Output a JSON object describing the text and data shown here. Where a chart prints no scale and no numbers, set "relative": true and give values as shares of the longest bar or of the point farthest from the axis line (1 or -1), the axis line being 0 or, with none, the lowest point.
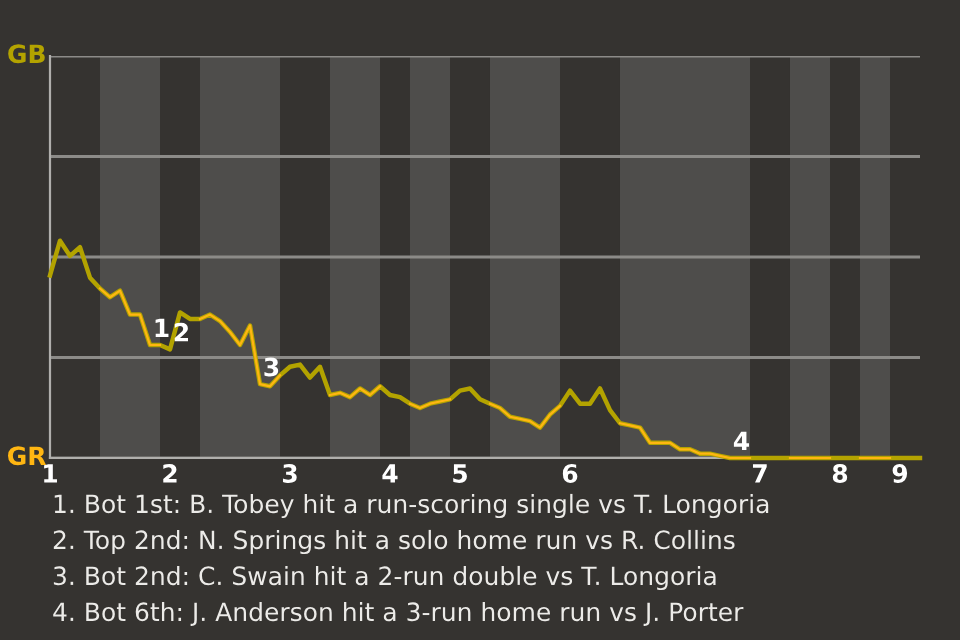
{
  "chart_data": {
    "type": "line",
    "relative": true,
    "ylim": [
      0,
      1.85
    ],
    "categories": [
      "1",
      null,
      null,
      null,
      null,
      null,
      null,
      null,
      null,
      null,
      null,
      null,
      "2",
      null,
      null,
      null,
      null,
      null,
      null,
      null,
      null,
      null,
      null,
      null,
      "3",
      null,
      null,
      null,
      null,
      null,
      null,
      null,
      null,
      null,
      "4",
      null,
      null,
      null,
      null,
      null,
      null,
      "5",
      null,
      null,
      null,
      null,
      null,
      null,
      null,
      null,
      null,
      null,
      "6",
      null,
      null,
      null,
      null,
      null,
      null,
      null,
      null,
      null,
      null,
      null,
      null,
      null,
      null,
      null,
      null,
      null,
      null,
      "7",
      null,
      null,
      null,
      null,
      null,
      null,
      null,
      "8",
      null,
      null,
      null,
      null,
      null,
      "9",
      null,
      null
    ],
    "grid": "y",
    "marker": "none",
    "line_style": "solid",
    "series": [
      {
        "color": "#b3a300",
        "values": [
          0.84,
          1,
          0.93,
          0.97,
          0.83,
          0.78,
          0.74,
          0.77,
          0.66,
          0.66,
          0.52,
          0.52,
          0.5,
          0.67,
          0.64,
          0.64,
          0.66,
          0.63,
          0.58,
          0.52,
          0.61,
          0.34,
          0.33,
          0.38,
          0.42,
          0.43,
          0.37,
          0.42,
          0.29,
          0.3,
          0.28,
          0.32,
          0.29,
          0.33,
          0.29,
          0.28,
          0.25,
          0.23,
          0.25,
          0.26,
          0.27,
          0.31,
          0.32,
          0.27,
          0.25,
          0.23,
          0.19,
          0.18,
          0.17,
          0.14,
          0.2,
          0.24,
          0.31,
          0.25,
          0.25,
          0.32,
          0.22,
          0.16,
          0.15,
          0.14,
          0.07,
          0.07,
          0.07,
          0.04,
          0.04,
          0.02,
          0.02,
          0.01,
          0,
          0,
          0,
          0,
          0,
          0,
          0,
          0,
          0,
          0,
          0,
          0,
          0,
          0,
          0,
          0,
          0,
          0,
          0,
          0
        ],
        "colors": [
          "#b3a300",
          "#b3a300",
          "#b3a300",
          "#b3a300",
          "#b3a300",
          "#ffb612",
          "#ffb612",
          "#ffb612",
          "#ffb612",
          "#ffb612",
          "#ffb612",
          "#b3a300",
          "#b3a300",
          "#b3a300",
          "#b3a300",
          "#ffb612",
          "#ffb612",
          "#ffb612",
          "#ffb612",
          "#ffb612",
          "#ffb612",
          "#ffb612",
          "#ffb612",
          "#b3a300",
          "#b3a300",
          "#b3a300",
          "#b3a300",
          "#b3a300",
          "#ffb612",
          "#ffb612",
          "#ffb612",
          "#ffb612",
          "#ffb612",
          "#b3a300",
          "#b3a300",
          "#b3a300",
          "#ffb612",
          "#ffb612",
          "#ffb612",
          "#ffb612",
          "#b3a300",
          "#b3a300",
          "#b3a300",
          "#b3a300",
          "#ffb612",
          "#ffb612",
          "#ffb612",
          "#ffb612",
          "#ffb612",
          "#ffb612",
          "#ffb612",
          "#b3a300",
          "#b3a300",
          "#b3a300",
          "#b3a300",
          "#b3a300",
          "#b3a300",
          "#ffb612",
          "#ffb612",
          "#ffb612",
          "#ffb612",
          "#ffb612",
          "#ffb612",
          "#ffb612",
          "#ffb612",
          "#ffb612",
          "#ffb612",
          "#ffb612",
          "#ffb612",
          "#ffb612",
          "#b3a300",
          "#b3a300",
          "#b3a300",
          "#b3a300",
          "#ffb612",
          "#ffb612",
          "#ffb612",
          "#ffb612",
          "#b3a300",
          "#b3a300",
          "#b3a300",
          "#ffb612",
          "#ffb612",
          "#ffb612",
          "#b3a300",
          "#b3a300",
          "#b3a300",
          "#b3a300"
        ]
      }
    ],
    "annotations": [
      {
        "text": "1",
        "y": 0.52
      },
      {
        "text": "2",
        "y": 0.5
      },
      {
        "text": "3",
        "y": 0.34
      },
      {
        "text": "4",
        "y": 0
      },
      "GB",
      "GR",
      "1. Bot 1st: B. Tobey hit a run-scoring single vs T. Longoria",
      "2. Top 2nd: N. Springs hit a solo home run vs R. Collins",
      "3. Bot 2nd: C. Swain hit a 2-run double vs T. Longoria",
      "4. Bot 6th: J. Anderson hit a 3-run home run vs J. Porter"
    ]
  }
}
